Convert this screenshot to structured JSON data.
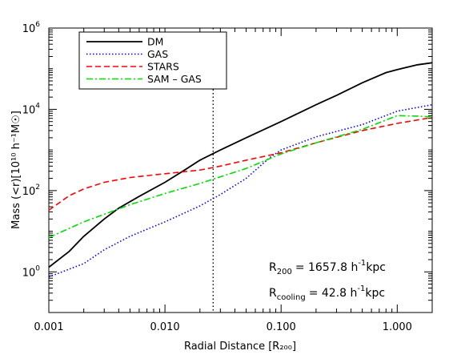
{
  "chart_data": {
    "type": "line",
    "x_scale": "log",
    "y_scale": "log",
    "xlim": [
      0.001,
      2.0
    ],
    "ylim": [
      0.1,
      1000000
    ],
    "xlabel": "Radial Distance [R₂₀₀]",
    "ylabel": "Mass (<r)[10¹⁰ h⁻¹M☉]",
    "x_ticks": [
      {
        "value": 0.001,
        "label": "0.001"
      },
      {
        "value": 0.01,
        "label": "0.010"
      },
      {
        "value": 0.1,
        "label": "0.100"
      },
      {
        "value": 1.0,
        "label": "1.000"
      }
    ],
    "y_ticks": [
      {
        "value": 1,
        "base": "10",
        "exp": "0"
      },
      {
        "value": 100,
        "base": "10",
        "exp": "2"
      },
      {
        "value": 10000,
        "base": "10",
        "exp": "4"
      },
      {
        "value": 1000000,
        "base": "10",
        "exp": "6"
      }
    ],
    "legend_position": "top-left",
    "vertical_line": {
      "x": 0.026,
      "style": "dotted"
    },
    "series": [
      {
        "name": "DM",
        "color": "#000000",
        "dash": "solid",
        "points": [
          [
            0.001,
            1.3
          ],
          [
            0.0015,
            3.2
          ],
          [
            0.002,
            7.5
          ],
          [
            0.003,
            20
          ],
          [
            0.004,
            37
          ],
          [
            0.006,
            72
          ],
          [
            0.01,
            160
          ],
          [
            0.015,
            330
          ],
          [
            0.02,
            560
          ],
          [
            0.03,
            1000
          ],
          [
            0.05,
            2000
          ],
          [
            0.1,
            5000
          ],
          [
            0.2,
            13000
          ],
          [
            0.3,
            22000
          ],
          [
            0.5,
            45000
          ],
          [
            0.8,
            80000
          ],
          [
            1.0,
            95000
          ],
          [
            1.5,
            125000
          ],
          [
            2.0,
            140000
          ]
        ]
      },
      {
        "name": "GAS",
        "color": "#0000ff",
        "dash": "dotted",
        "points": [
          [
            0.001,
            0.75
          ],
          [
            0.002,
            1.6
          ],
          [
            0.003,
            3.5
          ],
          [
            0.005,
            7.5
          ],
          [
            0.01,
            17
          ],
          [
            0.02,
            42
          ],
          [
            0.03,
            80
          ],
          [
            0.05,
            200
          ],
          [
            0.08,
            650
          ],
          [
            0.1,
            1000
          ],
          [
            0.2,
            2100
          ],
          [
            0.5,
            4200
          ],
          [
            1.0,
            9000
          ],
          [
            2.0,
            13000
          ]
        ]
      },
      {
        "name": "STARS",
        "color": "#ff0000",
        "dash": "dashed",
        "points": [
          [
            0.001,
            33
          ],
          [
            0.0015,
            75
          ],
          [
            0.002,
            110
          ],
          [
            0.003,
            160
          ],
          [
            0.005,
            210
          ],
          [
            0.01,
            260
          ],
          [
            0.02,
            320
          ],
          [
            0.03,
            400
          ],
          [
            0.05,
            560
          ],
          [
            0.1,
            850
          ],
          [
            0.2,
            1500
          ],
          [
            0.5,
            3000
          ],
          [
            1.0,
            4500
          ],
          [
            2.0,
            6300
          ]
        ]
      },
      {
        "name": "SAM – GAS",
        "color": "#00dd00",
        "dash": "dashdot",
        "points": [
          [
            0.001,
            7
          ],
          [
            0.002,
            17
          ],
          [
            0.005,
            45
          ],
          [
            0.01,
            85
          ],
          [
            0.02,
            150
          ],
          [
            0.05,
            350
          ],
          [
            0.1,
            800
          ],
          [
            0.2,
            1500
          ],
          [
            0.5,
            3200
          ],
          [
            1.0,
            7000
          ],
          [
            1.5,
            6800
          ],
          [
            2.0,
            6500
          ]
        ]
      }
    ],
    "annotations": [
      {
        "label": "R",
        "sub": "200",
        "value": "= 1657.8 h",
        "exp": "-1",
        "unit": "kpc"
      },
      {
        "label": "R",
        "sub": "cooling",
        "value": "= 42.8 h",
        "exp": "-1",
        "unit": "kpc"
      }
    ]
  }
}
